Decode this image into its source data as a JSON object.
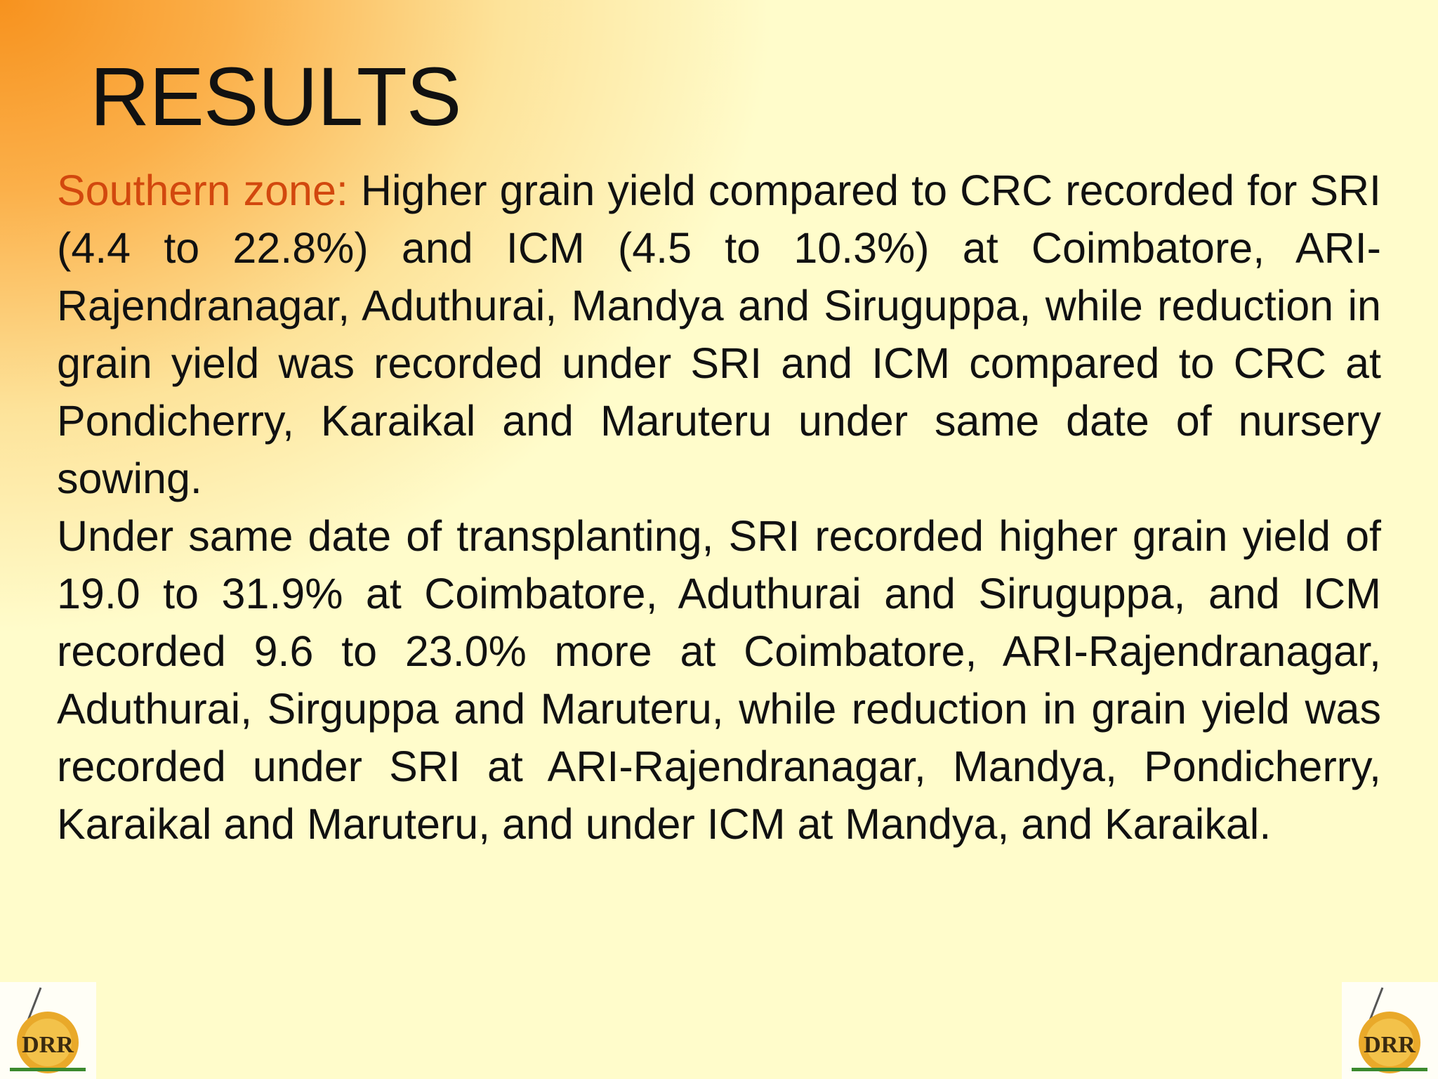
{
  "title": "RESULTS",
  "paragraphs": [
    {
      "label": "Southern zone:",
      "text": "Higher grain yield compared to CRC recorded for SRI (4.4 to 22.8%) and ICM (4.5 to 10.3%) at Coimbatore, ARI-Rajendranagar, Aduthurai, Mandya and Siruguppa, while reduction in grain yield was recorded under SRI and ICM compared to CRC at Pondicherry, Karaikal and Maruteru under same date of nursery sowing."
    },
    {
      "text": "Under same date of transplanting, SRI recorded higher grain yield of 19.0 to 31.9% at Coimbatore, Aduthurai and Siruguppa, and ICM recorded 9.6 to 23.0% more at Coimbatore, ARI-Rajendranagar, Aduthurai, Sirguppa and Maruteru, while reduction in grain yield was recorded under SRI at ARI-Rajendranagar, Mandya, Pondicherry, Karaikal and Maruteru, and under ICM at Mandya, and Karaikal."
    }
  ],
  "logos": [
    {
      "text": "DRR"
    },
    {
      "text": "DRR"
    }
  ]
}
